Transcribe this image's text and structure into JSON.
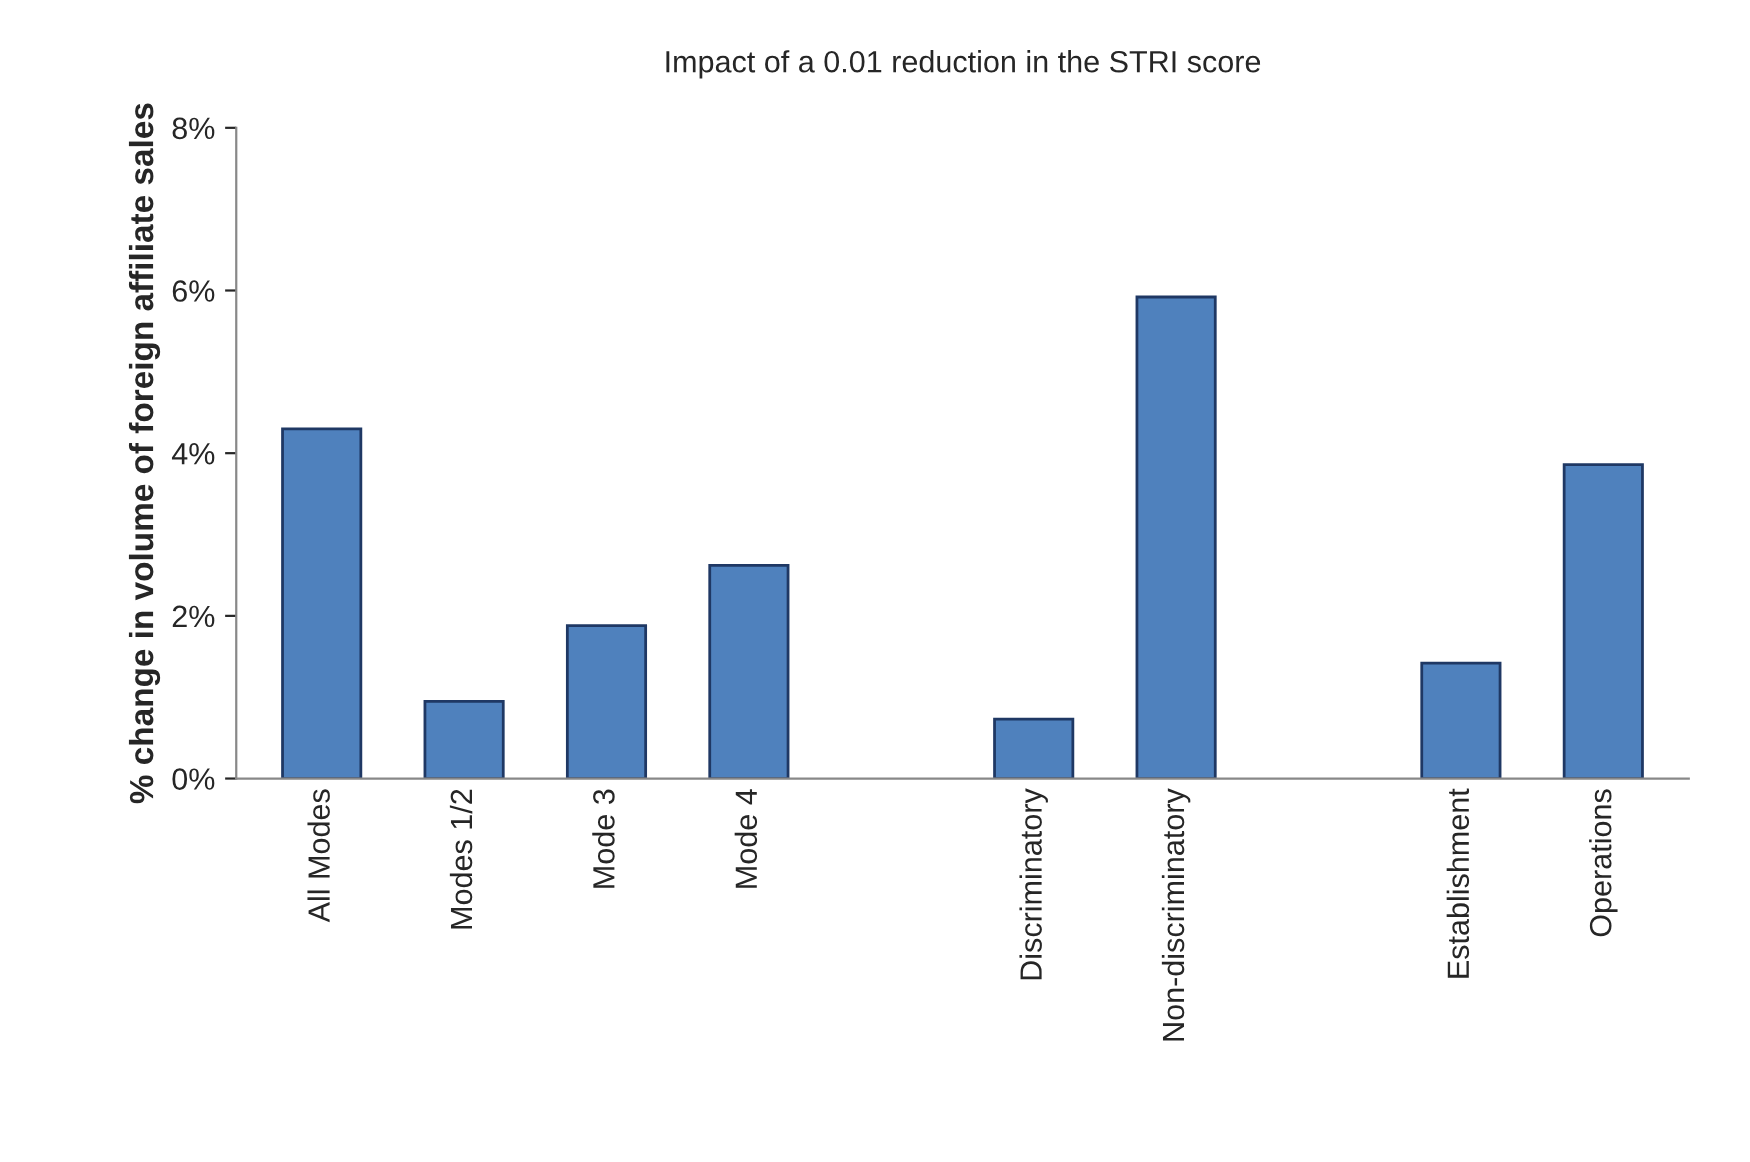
{
  "chart_data": {
    "type": "bar",
    "title": "Impact of a 0.01 reduction in the STRI score",
    "ylabel": "% change in volume of foreign affiliate sales",
    "categories": [
      "All Modes",
      "Modes 1/2",
      "Mode 3",
      "Mode 4",
      null,
      "Discriminatory",
      "Non-discriminatory",
      null,
      "Establishment",
      "Operations"
    ],
    "values": [
      4.3,
      0.95,
      1.88,
      2.62,
      null,
      0.73,
      5.92,
      null,
      1.42,
      3.86
    ],
    "color": "#4f81bd",
    "ylim": [
      0,
      8
    ],
    "yticks": [
      {
        "value": 0,
        "label": "0%"
      },
      {
        "value": 2,
        "label": "2%"
      },
      {
        "value": 4,
        "label": "4%"
      },
      {
        "value": 6,
        "label": "6%"
      },
      {
        "value": 8,
        "label": "8%"
      }
    ],
    "grid": false,
    "legend": false
  }
}
